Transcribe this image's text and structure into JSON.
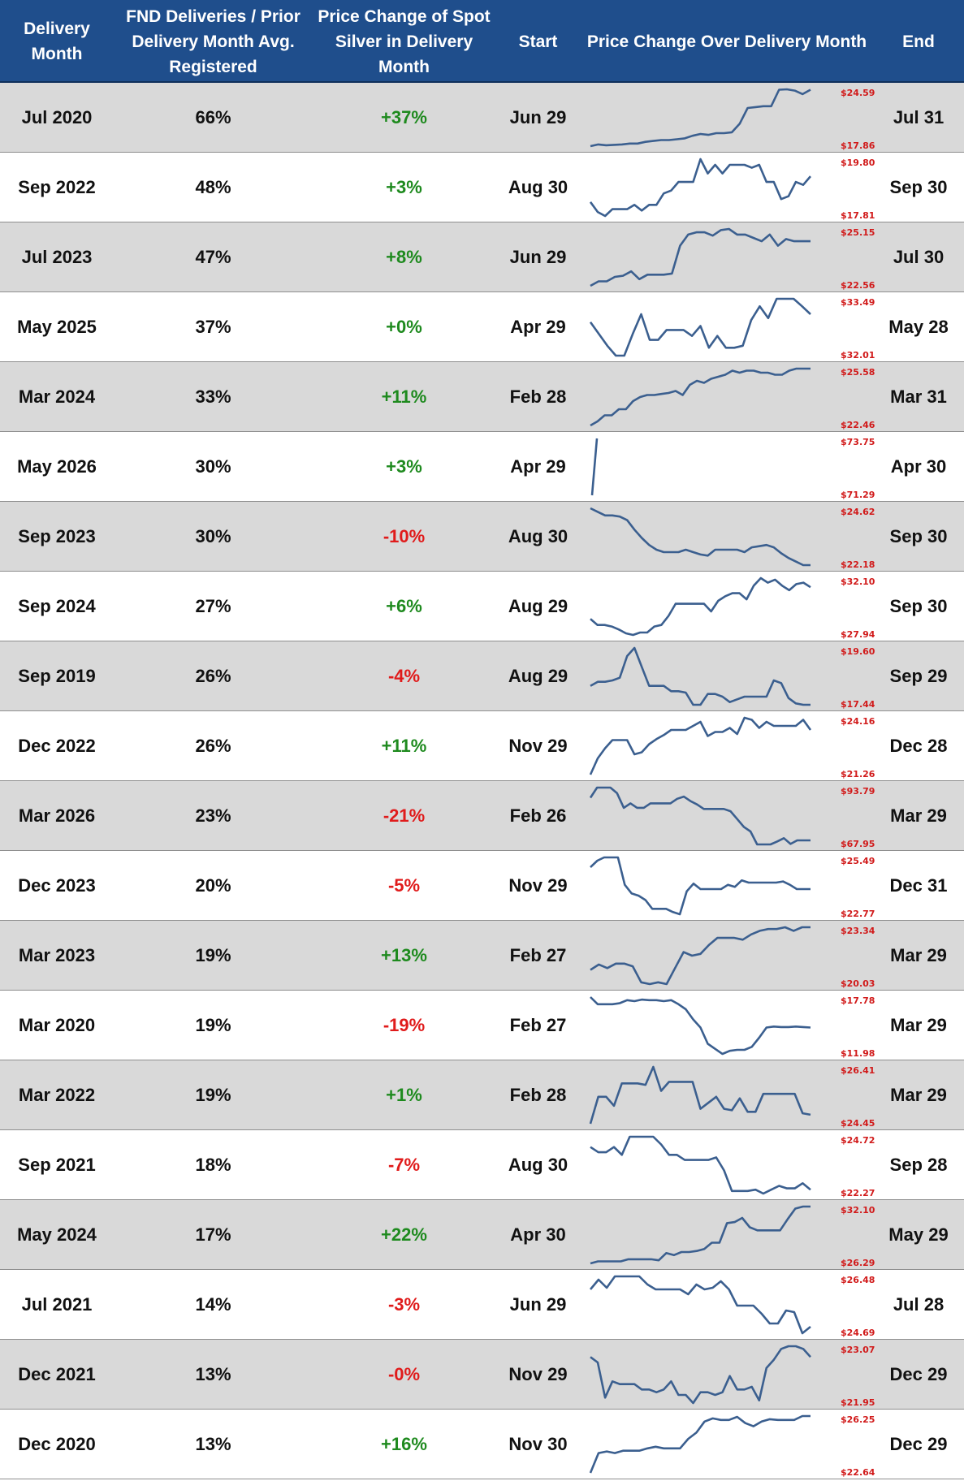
{
  "header": {
    "col1": "Delivery\nMonth",
    "col2": "FND Deliveries / Prior\nDelivery Month Avg.\nRegistered",
    "col3": "Price Change of Spot\nSilver in Delivery\nMonth",
    "col4": "Start",
    "col5": "Price Change Over Delivery Month",
    "col6": "End"
  },
  "colors": {
    "header_bg": "#1f4e8c",
    "row_shade": "#d9d9d9",
    "positive": "#1e8a1e",
    "negative": "#e01b1b",
    "sparkline": "#3b5f8f",
    "minmax_label": "#d11a1a"
  },
  "chart_data": {
    "type": "table",
    "series_type": "sparkline",
    "rows": [
      {
        "month": "Jul 2020",
        "fnd_ratio": "66%",
        "change": "+37%",
        "start": "Jun 29",
        "end": "Jul 31",
        "max_label": "$24.59",
        "min_label": "$17.86",
        "values": [
          18.0,
          18.2,
          18.1,
          18.15,
          18.2,
          18.3,
          18.3,
          18.5,
          18.6,
          18.7,
          18.7,
          18.8,
          18.9,
          19.2,
          19.4,
          19.3,
          19.5,
          19.5,
          19.6,
          20.6,
          22.4,
          22.5,
          22.6,
          22.6,
          24.5,
          24.55,
          24.4,
          24.0,
          24.5
        ]
      },
      {
        "month": "Sep 2022",
        "fnd_ratio": "48%",
        "change": "+3%",
        "start": "Aug 30",
        "end": "Sep 30",
        "max_label": "$19.80",
        "min_label": "$17.81",
        "values": [
          18.3,
          17.95,
          17.81,
          18.05,
          18.05,
          18.05,
          18.2,
          18.0,
          18.2,
          18.2,
          18.6,
          18.7,
          19.0,
          19.0,
          19.0,
          19.8,
          19.3,
          19.6,
          19.3,
          19.6,
          19.6,
          19.6,
          19.5,
          19.6,
          19.0,
          19.0,
          18.4,
          18.5,
          19.0,
          18.9,
          19.2
        ]
      },
      {
        "month": "Jul 2023",
        "fnd_ratio": "47%",
        "change": "+8%",
        "start": "Jun 29",
        "end": "Jul 30",
        "max_label": "$25.15",
        "min_label": "$22.56",
        "values": [
          22.6,
          22.8,
          22.8,
          23.0,
          23.05,
          23.25,
          22.9,
          23.1,
          23.1,
          23.1,
          23.15,
          24.4,
          24.9,
          25.0,
          25.0,
          24.85,
          25.1,
          25.15,
          24.9,
          24.9,
          24.75,
          24.6,
          24.9,
          24.4,
          24.7,
          24.6,
          24.6,
          24.6
        ]
      },
      {
        "month": "May 2025",
        "fnd_ratio": "37%",
        "change": "+0%",
        "start": "Apr 29",
        "end": "May 28",
        "max_label": "$33.49",
        "min_label": "$32.01",
        "values": [
          32.9,
          32.6,
          32.3,
          32.05,
          32.05,
          32.6,
          33.1,
          32.45,
          32.45,
          32.7,
          32.7,
          32.7,
          32.55,
          32.8,
          32.25,
          32.55,
          32.25,
          32.25,
          32.3,
          32.95,
          33.3,
          33.0,
          33.49,
          33.49,
          33.49,
          33.3,
          33.1
        ]
      },
      {
        "month": "Mar 2024",
        "fnd_ratio": "33%",
        "change": "+11%",
        "start": "Feb 28",
        "end": "Mar 31",
        "max_label": "$25.58",
        "min_label": "$22.46",
        "values": [
          22.5,
          22.7,
          23.0,
          23.0,
          23.3,
          23.3,
          23.7,
          23.9,
          24.0,
          24.0,
          24.05,
          24.1,
          24.2,
          24.0,
          24.5,
          24.7,
          24.6,
          24.8,
          24.9,
          25.0,
          25.2,
          25.1,
          25.2,
          25.2,
          25.1,
          25.1,
          25.0,
          25.0,
          25.2,
          25.3,
          25.3,
          25.3
        ]
      },
      {
        "month": "May 2026",
        "fnd_ratio": "30%",
        "change": "+3%",
        "start": "Apr 29",
        "end": "Apr 30",
        "max_label": "$73.75",
        "min_label": "$71.29",
        "values": [
          71.29,
          73.75
        ]
      },
      {
        "month": "Sep 2023",
        "fnd_ratio": "30%",
        "change": "-10%",
        "start": "Aug 30",
        "end": "Sep 30",
        "max_label": "$24.62",
        "min_label": "$22.18",
        "values": [
          24.6,
          24.45,
          24.3,
          24.3,
          24.25,
          24.1,
          23.7,
          23.35,
          23.05,
          22.85,
          22.75,
          22.75,
          22.75,
          22.85,
          22.75,
          22.65,
          22.6,
          22.85,
          22.85,
          22.85,
          22.85,
          22.75,
          22.95,
          23.0,
          23.05,
          22.95,
          22.7,
          22.5,
          22.35,
          22.2,
          22.2
        ]
      },
      {
        "month": "Sep 2024",
        "fnd_ratio": "27%",
        "change": "+6%",
        "start": "Aug 29",
        "end": "Sep 30",
        "max_label": "$32.10",
        "min_label": "$27.94",
        "values": [
          29.0,
          28.6,
          28.6,
          28.5,
          28.3,
          28.05,
          27.94,
          28.1,
          28.1,
          28.5,
          28.6,
          29.2,
          30.0,
          30.0,
          30.0,
          30.0,
          30.0,
          29.5,
          30.2,
          30.5,
          30.7,
          30.7,
          30.3,
          31.2,
          31.7,
          31.4,
          31.6,
          31.2,
          30.9,
          31.3,
          31.4,
          31.1
        ]
      },
      {
        "month": "Sep 2019",
        "fnd_ratio": "26%",
        "change": "-4%",
        "start": "Aug 29",
        "end": "Sep 29",
        "max_label": "$19.60",
        "min_label": "$17.44",
        "values": [
          18.2,
          18.35,
          18.35,
          18.4,
          18.5,
          19.3,
          19.6,
          18.9,
          18.2,
          18.2,
          18.2,
          18.0,
          18.0,
          17.95,
          17.5,
          17.5,
          17.9,
          17.9,
          17.8,
          17.6,
          17.7,
          17.8,
          17.8,
          17.8,
          17.8,
          18.4,
          18.3,
          17.75,
          17.55,
          17.5,
          17.5
        ]
      },
      {
        "month": "Dec 2022",
        "fnd_ratio": "26%",
        "change": "+11%",
        "start": "Nov 29",
        "end": "Dec 28",
        "max_label": "$24.16",
        "min_label": "$21.26",
        "values": [
          21.3,
          22.1,
          22.6,
          23.0,
          23.0,
          23.0,
          22.3,
          22.4,
          22.8,
          23.05,
          23.25,
          23.5,
          23.5,
          23.5,
          23.7,
          23.9,
          23.2,
          23.4,
          23.4,
          23.6,
          23.3,
          24.1,
          24.0,
          23.6,
          23.9,
          23.7,
          23.7,
          23.7,
          23.7,
          24.0,
          23.5
        ]
      },
      {
        "month": "Mar 2026",
        "fnd_ratio": "23%",
        "change": "-21%",
        "start": "Feb 26",
        "end": "Mar 29",
        "max_label": "$93.79",
        "min_label": "$67.95",
        "values": [
          89.0,
          93.5,
          93.5,
          93.5,
          91.0,
          84.5,
          86.5,
          84.5,
          84.5,
          86.5,
          86.5,
          86.5,
          86.5,
          88.5,
          89.5,
          87.5,
          86.0,
          84.0,
          84.0,
          84.0,
          84.0,
          83.0,
          79.5,
          76.0,
          74.0,
          68.2,
          68.2,
          68.2,
          69.5,
          71.0,
          68.4,
          70.0,
          70.0,
          70.0
        ]
      },
      {
        "month": "Dec 2023",
        "fnd_ratio": "20%",
        "change": "-5%",
        "start": "Nov 29",
        "end": "Dec 31",
        "max_label": "$25.49",
        "min_label": "$22.77",
        "values": [
          25.0,
          25.3,
          25.45,
          25.45,
          25.45,
          24.2,
          23.8,
          23.7,
          23.5,
          23.1,
          23.1,
          23.1,
          22.95,
          22.85,
          23.9,
          24.25,
          24.0,
          24.0,
          24.0,
          24.0,
          24.2,
          24.1,
          24.4,
          24.3,
          24.3,
          24.3,
          24.3,
          24.3,
          24.35,
          24.2,
          24.0,
          24.0,
          24.0
        ]
      },
      {
        "month": "Mar 2023",
        "fnd_ratio": "19%",
        "change": "+13%",
        "start": "Feb 27",
        "end": "Mar 29",
        "max_label": "$23.34",
        "min_label": "$20.03",
        "values": [
          20.9,
          21.2,
          21.0,
          21.25,
          21.25,
          21.1,
          20.2,
          20.1,
          20.2,
          20.1,
          21.0,
          21.9,
          21.7,
          21.8,
          22.3,
          22.7,
          22.7,
          22.7,
          22.6,
          22.9,
          23.1,
          23.2,
          23.2,
          23.3,
          23.1,
          23.3,
          23.3
        ]
      },
      {
        "month": "Mar 2020",
        "fnd_ratio": "19%",
        "change": "-19%",
        "start": "Feb 27",
        "end": "Mar 29",
        "max_label": "$17.78",
        "min_label": "$11.98",
        "values": [
          17.6,
          16.9,
          16.9,
          16.9,
          17.0,
          17.3,
          17.2,
          17.35,
          17.3,
          17.3,
          17.2,
          17.3,
          16.9,
          16.4,
          15.4,
          14.6,
          13.0,
          12.5,
          12.0,
          12.3,
          12.4,
          12.4,
          12.7,
          13.6,
          14.6,
          14.7,
          14.65,
          14.65,
          14.7,
          14.65,
          14.6
        ]
      },
      {
        "month": "Mar 2022",
        "fnd_ratio": "19%",
        "change": "+1%",
        "start": "Feb 28",
        "end": "Mar 29",
        "max_label": "$26.41",
        "min_label": "$24.45",
        "values": [
          24.5,
          25.4,
          25.4,
          25.1,
          25.85,
          25.85,
          25.85,
          25.8,
          26.4,
          25.6,
          25.9,
          25.9,
          25.9,
          25.9,
          25.0,
          25.2,
          25.4,
          25.0,
          24.95,
          25.35,
          24.9,
          24.9,
          25.5,
          25.5,
          25.5,
          25.5,
          25.5,
          24.85,
          24.8
        ]
      },
      {
        "month": "Sep 2021",
        "fnd_ratio": "18%",
        "change": "-7%",
        "start": "Aug 30",
        "end": "Sep 28",
        "max_label": "$24.72",
        "min_label": "$22.27",
        "values": [
          24.1,
          23.9,
          23.9,
          24.1,
          23.8,
          24.5,
          24.5,
          24.5,
          24.5,
          24.2,
          23.8,
          23.8,
          23.6,
          23.6,
          23.6,
          23.6,
          23.7,
          23.2,
          22.4,
          22.4,
          22.4,
          22.45,
          22.3,
          22.45,
          22.6,
          22.5,
          22.5,
          22.7,
          22.45
        ]
      },
      {
        "month": "May 2024",
        "fnd_ratio": "17%",
        "change": "+22%",
        "start": "Apr 30",
        "end": "May 29",
        "max_label": "$32.10",
        "min_label": "$26.29",
        "values": [
          26.3,
          26.5,
          26.5,
          26.5,
          26.5,
          26.7,
          26.7,
          26.7,
          26.7,
          26.6,
          27.3,
          27.1,
          27.4,
          27.4,
          27.5,
          27.7,
          28.3,
          28.3,
          30.2,
          30.3,
          30.7,
          29.8,
          29.5,
          29.5,
          29.5,
          29.5,
          30.6,
          31.6,
          31.8,
          31.8
        ]
      },
      {
        "month": "Jul 2021",
        "fnd_ratio": "14%",
        "change": "-3%",
        "start": "Jun 29",
        "end": "Jul 28",
        "max_label": "$26.48",
        "min_label": "$24.69",
        "values": [
          26.05,
          26.35,
          26.1,
          26.45,
          26.45,
          26.45,
          26.45,
          26.2,
          26.05,
          26.05,
          26.05,
          26.05,
          25.9,
          26.2,
          26.05,
          26.1,
          26.3,
          26.05,
          25.55,
          25.55,
          25.55,
          25.3,
          25.0,
          25.0,
          25.4,
          25.35,
          24.7,
          24.9
        ]
      },
      {
        "month": "Dec 2021",
        "fnd_ratio": "13%",
        "change": "-0%",
        "start": "Nov 29",
        "end": "Dec 29",
        "max_label": "$23.07",
        "min_label": "$21.95",
        "values": [
          22.8,
          22.7,
          22.05,
          22.35,
          22.3,
          22.3,
          22.3,
          22.2,
          22.2,
          22.15,
          22.2,
          22.35,
          22.1,
          22.1,
          21.95,
          22.15,
          22.15,
          22.1,
          22.15,
          22.45,
          22.2,
          22.2,
          22.25,
          22.0,
          22.6,
          22.75,
          22.95,
          23.0,
          23.0,
          22.95,
          22.8
        ]
      },
      {
        "month": "Dec 2020",
        "fnd_ratio": "13%",
        "change": "+16%",
        "start": "Nov 30",
        "end": "Dec 29",
        "max_label": "$26.25",
        "min_label": "$22.64",
        "values": [
          22.64,
          23.9,
          24.0,
          23.9,
          24.05,
          24.05,
          24.05,
          24.2,
          24.3,
          24.2,
          24.2,
          24.2,
          24.8,
          25.2,
          25.9,
          26.1,
          26.0,
          26.0,
          26.2,
          25.8,
          25.6,
          25.9,
          26.05,
          26.0,
          26.0,
          26.0,
          26.25,
          26.25
        ]
      }
    ]
  }
}
